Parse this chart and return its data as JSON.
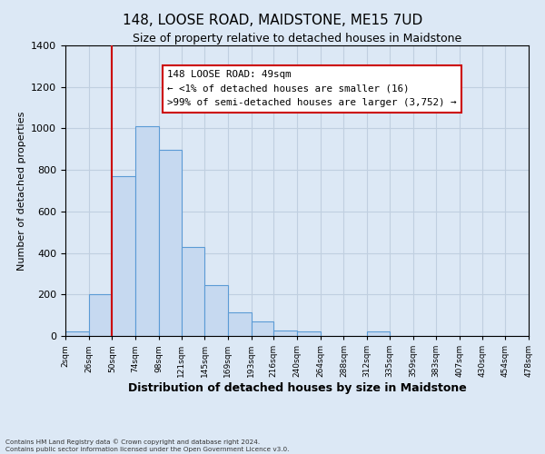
{
  "title": "148, LOOSE ROAD, MAIDSTONE, ME15 7UD",
  "subtitle": "Size of property relative to detached houses in Maidstone",
  "xlabel": "Distribution of detached houses by size in Maidstone",
  "ylabel": "Number of detached properties",
  "bin_edges": [
    2,
    26,
    50,
    74,
    98,
    121,
    145,
    169,
    193,
    216,
    240,
    264,
    288,
    312,
    335,
    359,
    383,
    407,
    430,
    454,
    478
  ],
  "bar_heights": [
    20,
    200,
    770,
    1010,
    895,
    430,
    245,
    115,
    70,
    25,
    20,
    0,
    0,
    20,
    0,
    0,
    0,
    0,
    0,
    0
  ],
  "bar_color": "#c6d9f0",
  "bar_edge_color": "#5b9bd5",
  "vline_x": 50,
  "vline_color": "#cc0000",
  "ylim": [
    0,
    1400
  ],
  "yticks": [
    0,
    200,
    400,
    600,
    800,
    1000,
    1200,
    1400
  ],
  "xtick_labels": [
    "2sqm",
    "26sqm",
    "50sqm",
    "74sqm",
    "98sqm",
    "121sqm",
    "145sqm",
    "169sqm",
    "193sqm",
    "216sqm",
    "240sqm",
    "264sqm",
    "288sqm",
    "312sqm",
    "335sqm",
    "359sqm",
    "383sqm",
    "407sqm",
    "430sqm",
    "454sqm",
    "478sqm"
  ],
  "annotation_title": "148 LOOSE ROAD: 49sqm",
  "annotation_line1": "← <1% of detached houses are smaller (16)",
  "annotation_line2": ">99% of semi-detached houses are larger (3,752) →",
  "annotation_box_color": "#ffffff",
  "annotation_box_edge": "#cc0000",
  "footer_line1": "Contains HM Land Registry data © Crown copyright and database right 2024.",
  "footer_line2": "Contains public sector information licensed under the Open Government Licence v3.0.",
  "grid_color": "#c0cfe0",
  "background_color": "#dce8f5"
}
